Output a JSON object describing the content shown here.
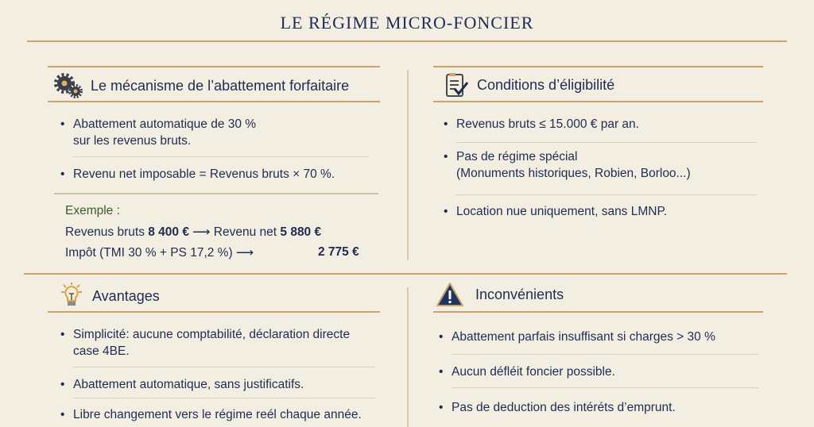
{
  "title": "LE RÉGIME MICRO-FONCIER",
  "colors": {
    "text": "#1f2b52",
    "accent": "#c9a56a",
    "example": "#3d5a2a",
    "background": "#f3eee2"
  },
  "mechanism": {
    "icon": "gears-icon",
    "heading": "Le mécanisme de l’abattement forfaitaire",
    "bullets": [
      {
        "line1": "Abattement automatique de 30 %",
        "line2": "sur les revenus bruts."
      },
      {
        "line1": "Revenu net imposable = Revenus bruts × 70 %."
      }
    ],
    "example": {
      "label": "Exemple :",
      "row1_a": "Revenus bruts ",
      "row1_b": "8 400 €",
      "row1_c": " ⟶ Revenu net ",
      "row1_d": "5 880 €",
      "row2_a": "Impôt (TMI 30 % + PS 17,2 %) ⟶",
      "row2_b": "2 775 €"
    }
  },
  "eligibility": {
    "icon": "checklist-icon",
    "heading": "Conditions d’éligibilité",
    "bullets": [
      {
        "line1": "Revenus bruts ≤ 15.000 € par an."
      },
      {
        "line1": "Pas de régime spécial",
        "line2": "(Monuments historiques, Robien, Borloo...)"
      },
      {
        "line1": "Location nue uniquement, sans LMNP."
      }
    ]
  },
  "advantages": {
    "icon": "lightbulb-icon",
    "heading": "Avantages",
    "bullets": [
      {
        "line1": "Simplicité: aucune comptabilité, déclaration directe",
        "line2": "case 4BE."
      },
      {
        "line1": "Abattement automatique, sans justificatifs."
      },
      {
        "line1": "Libre changement vers le régime reél chaque année."
      }
    ]
  },
  "drawbacks": {
    "icon": "warning-icon",
    "heading": "Inconvénients",
    "bullets": [
      {
        "line1": "Abattement parfais insuffisant si charges > 30 %"
      },
      {
        "line1": "Aucun défléit foncier possible."
      },
      {
        "line1": "Pas de deduction des intéréts d’emprunt."
      }
    ]
  }
}
